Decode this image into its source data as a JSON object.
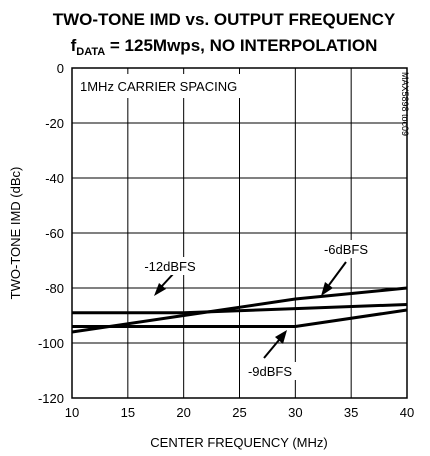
{
  "chart_data": {
    "type": "line",
    "title_line1": "TWO-TONE IMD vs. OUTPUT FREQUENCY",
    "title_line2_main": "f",
    "title_line2_sub": "DATA",
    "title_line2_rest": " = 125Mwps, NO INTERPOLATION",
    "xlabel": "CENTER FREQUENCY (MHz)",
    "ylabel": "TWO-TONE IMD (dBc)",
    "xlim": [
      10,
      40
    ],
    "ylim": [
      -120,
      0
    ],
    "xticks": [
      "10",
      "15",
      "20",
      "25",
      "30",
      "35",
      "40"
    ],
    "yticks": [
      "0",
      "-20",
      "-40",
      "-60",
      "-80",
      "-100",
      "-120"
    ],
    "grid": true,
    "inner_label": "1MHz CARRIER SPACING",
    "side_label": "MAX5898 toc09",
    "series": [
      {
        "name": "-6dBFS",
        "x": [
          10,
          20,
          30,
          40
        ],
        "y": [
          -96,
          -90,
          -84,
          -80
        ]
      },
      {
        "name": "-12dBFS",
        "x": [
          10,
          20,
          30,
          40
        ],
        "y": [
          -89,
          -89,
          -87.5,
          -86
        ]
      },
      {
        "name": "-9dBFS",
        "x": [
          10,
          20,
          30,
          40
        ],
        "y": [
          -94,
          -94,
          -94,
          -88
        ]
      }
    ]
  }
}
